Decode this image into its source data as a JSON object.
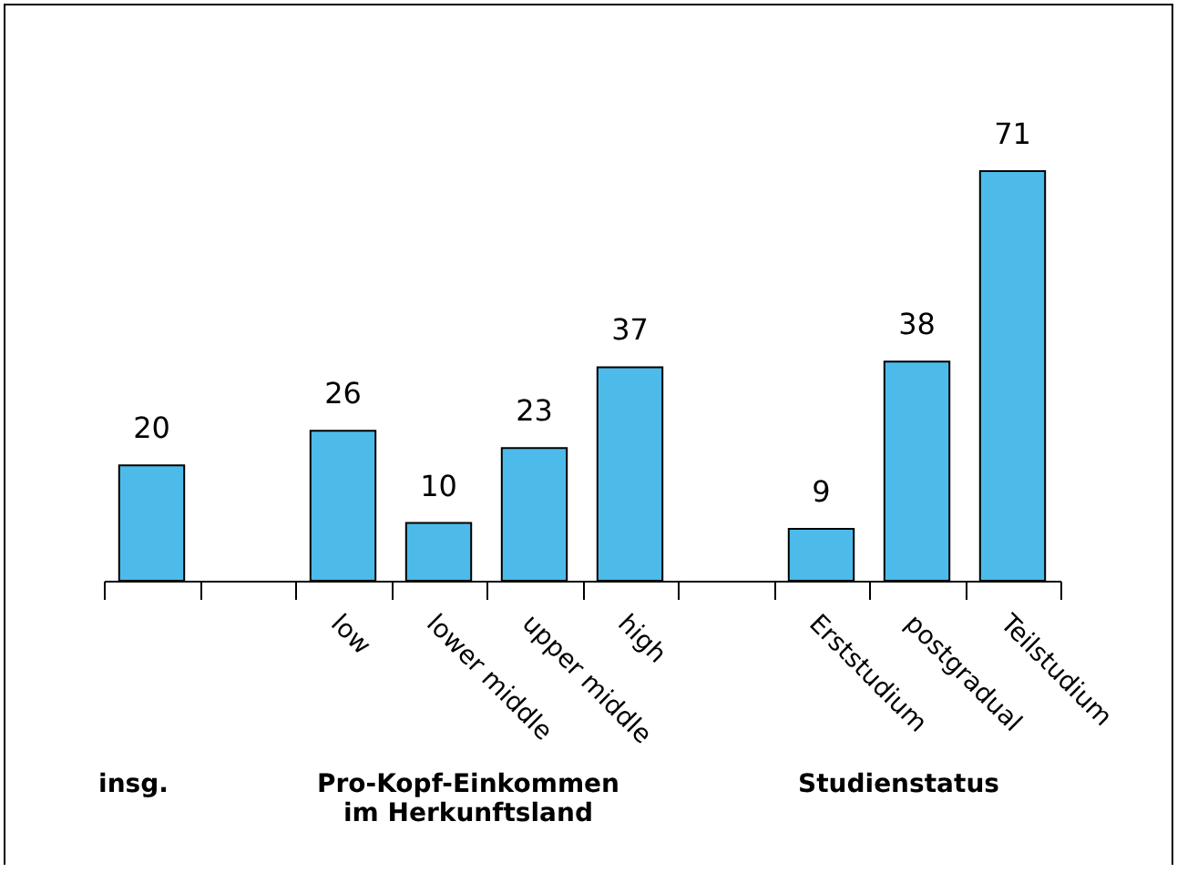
{
  "chart_data": {
    "type": "bar",
    "categories": [
      null,
      null,
      "low",
      "lower middle",
      "upper middle",
      "high",
      null,
      "Erststudium",
      "postgradual",
      "Teilstudium"
    ],
    "values": [
      20,
      null,
      26,
      10,
      23,
      37,
      null,
      9,
      38,
      71
    ],
    "color": "#4dbbea",
    "data_labels": true,
    "grid": false,
    "annotations": [
      "insg.",
      "Pro-Kopf-Einkommen im Herkunftsland",
      "Studienstatus"
    ]
  }
}
